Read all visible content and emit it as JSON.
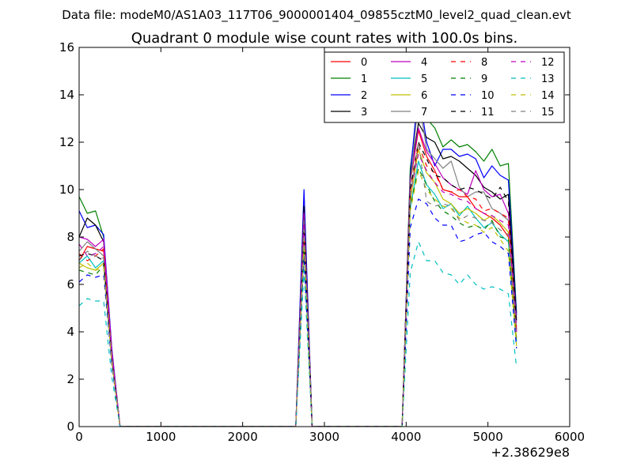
{
  "header": {
    "suptitle": "Data file: modeM0/AS1A03_117T06_9000001404_09855cztM0_level2_quad_clean.evt"
  },
  "chart_data": {
    "type": "line",
    "title": "Quadrant 0 module wise count rates with 100.0s bins.",
    "xlabel": "",
    "ylabel": "",
    "x_offset_label": "+2.38629e8",
    "xlim": [
      0,
      6000
    ],
    "ylim": [
      0,
      16
    ],
    "xticks": [
      0,
      1000,
      2000,
      3000,
      4000,
      5000,
      6000
    ],
    "yticks": [
      0,
      2,
      4,
      6,
      8,
      10,
      12,
      14,
      16
    ],
    "grid": false,
    "legend": {
      "position": "top-right",
      "ncol": 4
    },
    "x": [
      0,
      100,
      200,
      300,
      400,
      500,
      600,
      700,
      2600,
      2650,
      2750,
      2850,
      3900,
      3950,
      4050,
      4150,
      4250,
      4350,
      4450,
      4550,
      4650,
      4750,
      4850,
      4950,
      5050,
      5150,
      5250,
      5350
    ],
    "series": [
      {
        "name": "0",
        "color": "#ff0000",
        "dash": "solid",
        "values": [
          7.0,
          7.6,
          7.5,
          7.4,
          3.0,
          0,
          0,
          0,
          0,
          0,
          8.3,
          0,
          0,
          0,
          10.3,
          12.5,
          11.4,
          10.8,
          10.0,
          9.9,
          9.7,
          9.7,
          9.2,
          9.0,
          8.8,
          8.5,
          8.0,
          4.0
        ]
      },
      {
        "name": "1",
        "color": "#008000",
        "dash": "solid",
        "values": [
          9.7,
          9.0,
          9.1,
          8.0,
          3.2,
          0,
          0,
          0,
          0,
          0,
          9.0,
          0,
          0,
          0,
          10.9,
          13.6,
          13.0,
          12.6,
          11.8,
          12.1,
          11.8,
          11.9,
          11.6,
          11.2,
          11.7,
          11.0,
          11.1,
          4.8
        ]
      },
      {
        "name": "2",
        "color": "#0000ff",
        "dash": "solid",
        "values": [
          9.1,
          8.4,
          8.5,
          8.1,
          3.3,
          0,
          0,
          0,
          0,
          0,
          10.0,
          0,
          0,
          0,
          10.6,
          14.3,
          12.0,
          11.0,
          11.7,
          11.7,
          11.4,
          11.5,
          11.3,
          10.5,
          11.0,
          10.6,
          10.4,
          4.7
        ]
      },
      {
        "name": "3",
        "color": "#000000",
        "dash": "solid",
        "values": [
          8.0,
          8.8,
          8.5,
          7.8,
          3.1,
          0,
          0,
          0,
          0,
          0,
          9.3,
          0,
          0,
          0,
          10.5,
          12.8,
          12.2,
          12.0,
          11.3,
          11.4,
          11.2,
          10.9,
          10.6,
          10.1,
          9.9,
          9.6,
          9.8,
          4.5
        ]
      },
      {
        "name": "4",
        "color": "#bf00bf",
        "dash": "solid",
        "values": [
          8.0,
          7.9,
          7.6,
          7.9,
          3.2,
          0,
          0,
          0,
          0,
          0,
          9.0,
          0,
          0,
          0,
          10.4,
          12.6,
          11.6,
          11.1,
          10.5,
          10.2,
          10.0,
          9.8,
          10.8,
          10.0,
          9.7,
          9.8,
          9.0,
          4.4
        ]
      },
      {
        "name": "5",
        "color": "#00bfbf",
        "dash": "solid",
        "values": [
          6.9,
          7.2,
          6.7,
          7.0,
          2.8,
          0,
          0,
          0,
          0,
          0,
          7.5,
          0,
          0,
          0,
          9.2,
          11.2,
          10.2,
          9.8,
          9.2,
          9.4,
          8.9,
          9.3,
          8.8,
          8.4,
          8.6,
          8.1,
          7.8,
          3.6
        ]
      },
      {
        "name": "6",
        "color": "#bfbf00",
        "dash": "solid",
        "values": [
          6.9,
          6.7,
          6.6,
          6.9,
          2.8,
          0,
          0,
          0,
          0,
          0,
          7.8,
          0,
          0,
          0,
          9.5,
          11.7,
          10.7,
          10.3,
          9.6,
          9.4,
          9.0,
          9.2,
          9.0,
          8.7,
          8.9,
          8.6,
          8.2,
          3.7
        ]
      },
      {
        "name": "7",
        "color": "#808080",
        "dash": "solid",
        "values": [
          7.4,
          7.8,
          7.5,
          7.2,
          2.9,
          0,
          0,
          0,
          0,
          0,
          8.7,
          0,
          0,
          0,
          10.1,
          13.9,
          11.7,
          11.3,
          10.9,
          11.2,
          10.1,
          9.7,
          9.9,
          9.9,
          9.2,
          9.0,
          8.7,
          4.2
        ]
      },
      {
        "name": "8",
        "color": "#ff0000",
        "dash": "dashed",
        "values": [
          7.3,
          7.0,
          7.2,
          7.5,
          3.0,
          0,
          0,
          0,
          0,
          0,
          8.2,
          0,
          0,
          0,
          9.9,
          11.9,
          11.0,
          10.7,
          10.0,
          9.9,
          10.0,
          9.7,
          9.6,
          9.1,
          9.2,
          9.0,
          8.8,
          4.1
        ]
      },
      {
        "name": "9",
        "color": "#008000",
        "dash": "dashed",
        "values": [
          6.6,
          6.5,
          6.4,
          6.8,
          2.7,
          0,
          0,
          0,
          0,
          0,
          7.6,
          0,
          0,
          0,
          9.3,
          10.9,
          10.2,
          9.5,
          9.1,
          8.9,
          8.6,
          8.4,
          8.5,
          8.3,
          8.7,
          8.0,
          7.9,
          3.5
        ]
      },
      {
        "name": "10",
        "color": "#0000ff",
        "dash": "dashed",
        "values": [
          6.1,
          6.4,
          6.3,
          6.4,
          2.6,
          0,
          0,
          0,
          0,
          0,
          7.2,
          0,
          0,
          0,
          8.4,
          9.6,
          9.4,
          8.8,
          8.5,
          8.5,
          7.8,
          7.9,
          8.1,
          8.2,
          7.8,
          7.6,
          7.3,
          3.3
        ]
      },
      {
        "name": "11",
        "color": "#000000",
        "dash": "dashed",
        "values": [
          7.2,
          7.3,
          7.2,
          7.0,
          2.9,
          0,
          0,
          0,
          0,
          0,
          8.5,
          0,
          0,
          0,
          10.0,
          12.0,
          11.3,
          10.6,
          10.5,
          10.2,
          10.0,
          10.1,
          10.0,
          9.8,
          9.6,
          10.1,
          9.5,
          4.3
        ]
      },
      {
        "name": "12",
        "color": "#bf00bf",
        "dash": "dashed",
        "values": [
          7.7,
          7.2,
          7.3,
          7.6,
          3.0,
          0,
          0,
          0,
          0,
          0,
          8.6,
          0,
          0,
          0,
          9.8,
          11.5,
          10.8,
          10.3,
          9.9,
          9.8,
          9.6,
          9.5,
          9.2,
          9.0,
          8.9,
          8.7,
          8.5,
          4.0
        ]
      },
      {
        "name": "13",
        "color": "#00bfbf",
        "dash": "dashed",
        "values": [
          5.1,
          5.4,
          5.3,
          5.3,
          2.1,
          0,
          0,
          0,
          0,
          0,
          6.6,
          0,
          0,
          0,
          6.5,
          7.8,
          7.0,
          7.0,
          6.5,
          6.4,
          6.0,
          6.4,
          6.0,
          5.8,
          5.9,
          5.8,
          5.6,
          2.5
        ]
      },
      {
        "name": "14",
        "color": "#bfbf00",
        "dash": "dashed",
        "values": [
          6.7,
          6.9,
          6.6,
          6.7,
          2.7,
          0,
          0,
          0,
          0,
          0,
          7.7,
          0,
          0,
          0,
          9.1,
          10.8,
          10.0,
          9.6,
          9.3,
          9.2,
          8.8,
          8.6,
          8.5,
          8.2,
          8.4,
          7.9,
          7.4,
          3.4
        ]
      },
      {
        "name": "15",
        "color": "#808080",
        "dash": "dashed",
        "values": [
          7.0,
          7.4,
          7.2,
          7.1,
          2.9,
          0,
          0,
          0,
          0,
          0,
          8.3,
          0,
          0,
          0,
          9.7,
          12.0,
          9.5,
          9.3,
          9.4,
          9.3,
          8.7,
          8.9,
          8.8,
          8.7,
          8.6,
          8.3,
          8.1,
          3.8
        ]
      }
    ]
  }
}
